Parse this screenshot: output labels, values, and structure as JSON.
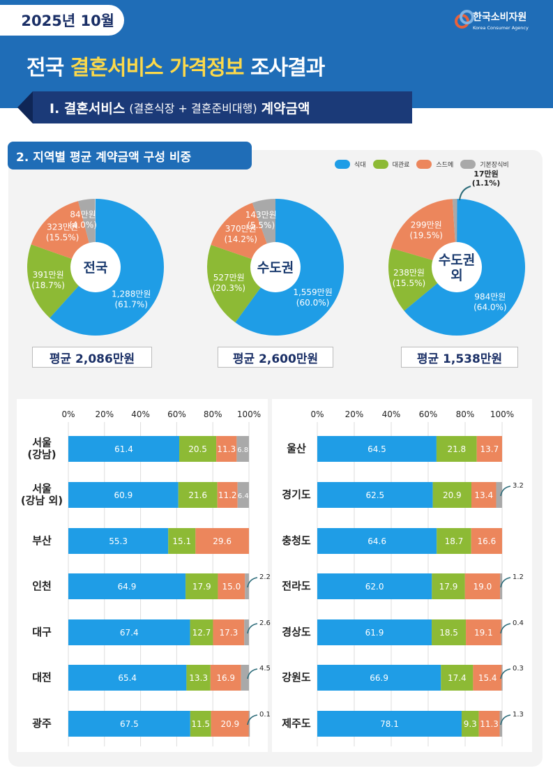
{
  "header": {
    "date": "2025년 10월",
    "logo_ko": "한국소비자원",
    "logo_en": "Korea Consumer Agency",
    "title_a": "전국 ",
    "title_b": "결혼서비스 가격정보",
    "title_c": " 조사결과"
  },
  "section1": {
    "num": "Ⅰ. 결혼서비스",
    "sub": "(결혼식장 + 결혼준비대행)",
    "tail": "계약금액"
  },
  "section2": {
    "title": "2. 지역별 평균 계약금액 구성 비중"
  },
  "colors": {
    "food": "#1f9de6",
    "venue": "#8dba35",
    "sdm": "#ec865c",
    "basic": "#a9a9a9"
  },
  "legend": [
    "식대",
    "대관료",
    "스드메",
    "기본장식비"
  ],
  "chart_data": [
    {
      "type": "pie",
      "title": "전국",
      "average": "평균 2,086만원",
      "slices": [
        {
          "name": "식대",
          "amount": "1,288만원",
          "pct": "(61.7%)",
          "value": 61.7
        },
        {
          "name": "대관료",
          "amount": "391만원",
          "pct": "(18.7%)",
          "value": 18.7
        },
        {
          "name": "스드메",
          "amount": "323만원",
          "pct": "(15.5%)",
          "value": 15.5
        },
        {
          "name": "기본장식비",
          "amount": "84만원",
          "pct": "(4.0%)",
          "value": 4.0
        }
      ]
    },
    {
      "type": "pie",
      "title": "수도권",
      "average": "평균 2,600만원",
      "slices": [
        {
          "name": "식대",
          "amount": "1,559만원",
          "pct": "(60.0%)",
          "value": 60.0
        },
        {
          "name": "대관료",
          "amount": "527만원",
          "pct": "(20.3%)",
          "value": 20.3
        },
        {
          "name": "스드메",
          "amount": "370만원",
          "pct": "(14.2%)",
          "value": 14.2
        },
        {
          "name": "기본장식비",
          "amount": "143만원",
          "pct": "(5.5%)",
          "value": 5.5
        }
      ]
    },
    {
      "type": "pie",
      "title": "수도권 외",
      "average": "평균 1,538만원",
      "slices": [
        {
          "name": "식대",
          "amount": "984만원",
          "pct": "(64.0%)",
          "value": 64.0
        },
        {
          "name": "대관료",
          "amount": "238만원",
          "pct": "(15.5%)",
          "value": 15.5
        },
        {
          "name": "스드메",
          "amount": "299만원",
          "pct": "(19.5%)",
          "value": 19.5
        },
        {
          "name": "기본장식비",
          "amount": "17만원",
          "pct": "(1.1%)",
          "value": 1.1
        }
      ]
    },
    {
      "type": "bar",
      "stacked": true,
      "xlim": [
        0,
        100
      ],
      "ticks": [
        "0%",
        "20%",
        "40%",
        "60%",
        "80%",
        "100%"
      ],
      "series": [
        "식대",
        "대관료",
        "스드메",
        "기본장식비"
      ],
      "categories": [
        "서울\n(강남)",
        "서울\n(강남 외)",
        "부산",
        "인천",
        "대구",
        "대전",
        "광주"
      ],
      "values": [
        [
          61.4,
          20.5,
          11.3,
          6.8
        ],
        [
          60.9,
          21.6,
          11.2,
          6.4
        ],
        [
          55.3,
          15.1,
          29.6,
          null
        ],
        [
          64.9,
          17.9,
          15.0,
          2.2
        ],
        [
          67.4,
          12.7,
          17.3,
          2.6
        ],
        [
          65.4,
          13.3,
          16.9,
          4.5
        ],
        [
          67.5,
          11.5,
          20.9,
          0.1
        ]
      ]
    },
    {
      "type": "bar",
      "stacked": true,
      "xlim": [
        0,
        100
      ],
      "ticks": [
        "0%",
        "20%",
        "40%",
        "60%",
        "80%",
        "100%"
      ],
      "series": [
        "식대",
        "대관료",
        "스드메",
        "기본장식비"
      ],
      "categories": [
        "울산",
        "경기도",
        "충청도",
        "전라도",
        "경상도",
        "강원도",
        "제주도"
      ],
      "values": [
        [
          64.5,
          21.8,
          13.7,
          null
        ],
        [
          62.5,
          20.9,
          13.4,
          3.2
        ],
        [
          64.6,
          18.7,
          16.6,
          null
        ],
        [
          62.0,
          17.9,
          19.0,
          1.2
        ],
        [
          61.9,
          18.5,
          19.1,
          0.4
        ],
        [
          66.9,
          17.4,
          15.4,
          0.3
        ],
        [
          78.1,
          9.3,
          11.3,
          1.3
        ]
      ]
    }
  ]
}
